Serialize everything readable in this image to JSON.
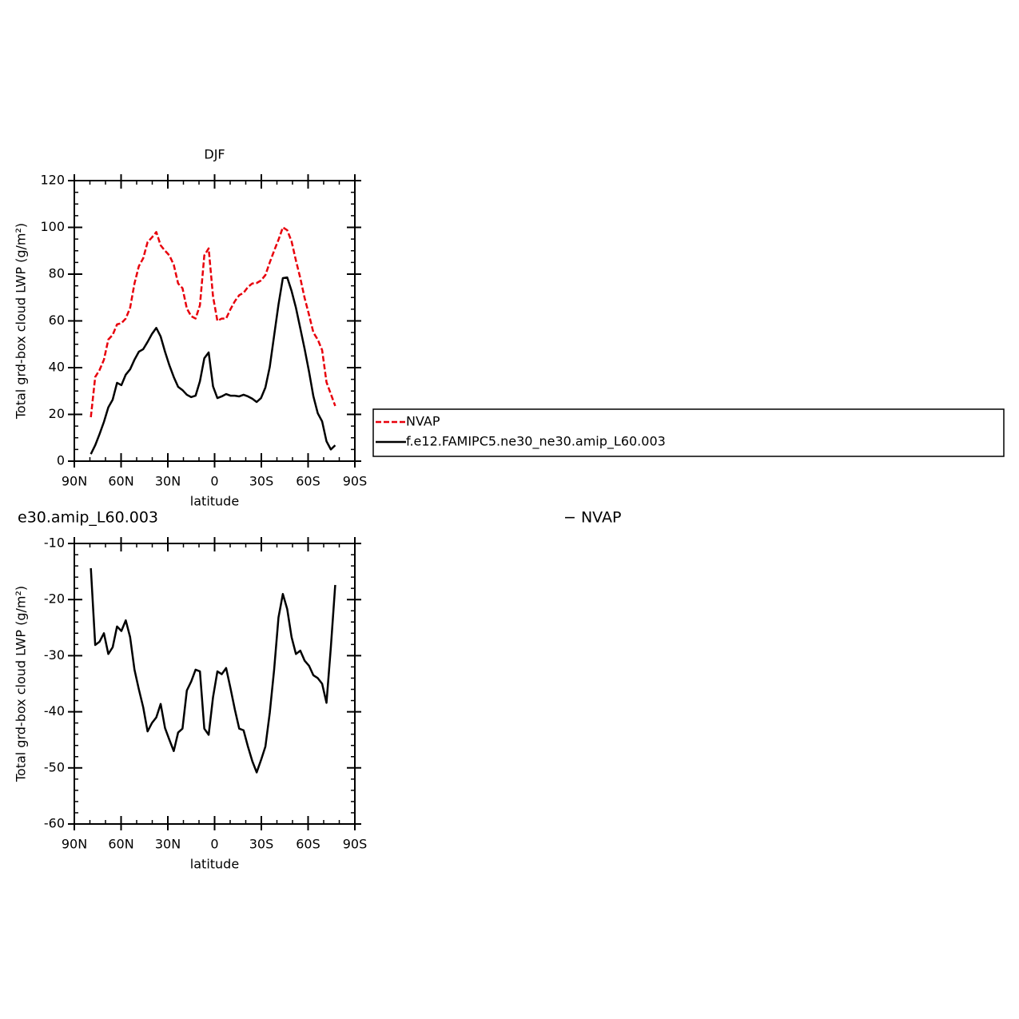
{
  "chart_data": [
    {
      "type": "line",
      "title": "DJF",
      "xlabel": "latitude",
      "ylabel": "Total grd-box cloud LWP (g/m²)",
      "x": [
        79.4,
        76.6,
        73.8,
        71.0,
        68.2,
        65.4,
        62.6,
        59.8,
        57.0,
        54.2,
        51.4,
        48.6,
        45.8,
        43.0,
        40.2,
        37.4,
        34.6,
        31.8,
        29.0,
        26.2,
        23.4,
        20.6,
        17.8,
        15.0,
        12.2,
        9.4,
        6.6,
        3.8,
        1.0,
        -1.8,
        -4.6,
        -7.4,
        -10.2,
        -13.0,
        -15.8,
        -18.6,
        -21.4,
        -24.2,
        -27.0,
        -29.8,
        -32.6,
        -35.4,
        -38.2,
        -41.0,
        -43.8,
        -46.6,
        -49.4,
        -52.2,
        -55.0,
        -57.8,
        -60.6,
        -63.4,
        -66.2,
        -69.0,
        -71.8,
        -74.6,
        -77.4
      ],
      "series": [
        {
          "name": "NVAP",
          "color": "#e8000b",
          "dashed": true,
          "values": [
            18.8,
            36,
            39,
            43.4,
            52,
            54,
            58.5,
            59,
            61,
            65.6,
            76,
            83.4,
            86.8,
            93.7,
            95.7,
            98,
            92.3,
            90,
            88,
            84,
            76,
            74,
            65.3,
            62,
            61,
            66.7,
            88,
            91,
            70.4,
            60,
            61,
            61,
            65,
            68.4,
            71,
            72,
            74.5,
            76,
            76.2,
            77.3,
            79.6,
            85,
            90,
            94.7,
            100,
            98.8,
            94,
            85.8,
            78.3,
            69.7,
            62.6,
            55,
            52,
            47.5,
            33.8,
            28.7,
            23.6
          ]
        },
        {
          "name": "f.e12.FAMIPC5.ne30_ne30.amip_L60.003",
          "color": "#000000",
          "dashed": false,
          "values": [
            3,
            6.8,
            11.6,
            16.8,
            23,
            26.3,
            33.5,
            32.5,
            37,
            39.3,
            43.4,
            46.8,
            47.9,
            51,
            54.4,
            57,
            53.3,
            46.8,
            41,
            36,
            31.8,
            30.4,
            28.4,
            27.4,
            28,
            34.2,
            44,
            46.5,
            32,
            27,
            27.7,
            28.7,
            28,
            28,
            27.7,
            28.4,
            27.7,
            26.7,
            25.3,
            27,
            31.5,
            40.3,
            53.7,
            67,
            78.3,
            78.6,
            72.8,
            65.6,
            56.8,
            47.9,
            38.3,
            27.7,
            20.5,
            17,
            8.5,
            5,
            6.8
          ]
        }
      ],
      "xlim": [
        90,
        -90
      ],
      "xticks": [
        {
          "value": 90,
          "label": "90N"
        },
        {
          "value": 60,
          "label": "60N"
        },
        {
          "value": 30,
          "label": "30N"
        },
        0,
        {
          "value": -30,
          "label": "30S"
        },
        {
          "value": -60,
          "label": "60S"
        },
        {
          "value": -90,
          "label": "90S"
        }
      ],
      "xminor": [
        80,
        70,
        50,
        40,
        20,
        10,
        -10,
        -20,
        -40,
        -50,
        -70,
        -80
      ],
      "ylim": [
        0,
        120
      ],
      "yticks": [
        0,
        20,
        40,
        60,
        80,
        100,
        120
      ],
      "yminor": [
        5,
        10,
        15,
        25,
        30,
        35,
        45,
        50,
        55,
        65,
        70,
        75,
        85,
        90,
        95,
        105,
        110,
        115
      ],
      "legend": "right"
    },
    {
      "type": "line",
      "title_parts": [
        "e30.amip_L60.003",
        "− NVAP"
      ],
      "xlabel": "latitude",
      "ylabel": "Total grd-box cloud LWP (g/m²)",
      "x": [
        79.4,
        76.6,
        73.8,
        71.0,
        68.2,
        65.4,
        62.6,
        59.8,
        57.0,
        54.2,
        51.4,
        48.6,
        45.8,
        43.0,
        40.2,
        37.4,
        34.6,
        31.8,
        29.0,
        26.2,
        23.4,
        20.6,
        17.8,
        15.0,
        12.2,
        9.4,
        6.6,
        3.8,
        1.0,
        -1.8,
        -4.6,
        -7.4,
        -10.2,
        -13.0,
        -15.8,
        -18.6,
        -21.4,
        -24.2,
        -27.0,
        -29.8,
        -32.6,
        -35.4,
        -38.2,
        -41.0,
        -43.8,
        -46.6,
        -49.4,
        -52.2,
        -55.0,
        -57.8,
        -60.6,
        -63.4,
        -66.2,
        -69.0,
        -71.8,
        -74.6,
        -77.4
      ],
      "series": [
        {
          "color": "#000000",
          "dashed": false,
          "values": [
            -14.4,
            -28.1,
            -27.5,
            -26,
            -29.7,
            -28.5,
            -24.8,
            -25.6,
            -23.7,
            -26.7,
            -32.5,
            -36,
            -39.2,
            -43.5,
            -42,
            -41,
            -38.6,
            -42.9,
            -45,
            -47,
            -43.7,
            -43,
            -36.2,
            -34.6,
            -32.5,
            -32.8,
            -43,
            -44.1,
            -37.4,
            -32.8,
            -33.3,
            -32.2,
            -35.8,
            -39.6,
            -43,
            -43.3,
            -46.2,
            -48.8,
            -50.8,
            -48.6,
            -46.2,
            -40.2,
            -32.5,
            -23.2,
            -19,
            -21.7,
            -26.7,
            -29.7,
            -29.1,
            -30.9,
            -31.8,
            -33.5,
            -34,
            -35,
            -38.4,
            -28.5,
            -17.4
          ]
        }
      ],
      "xlim": [
        90,
        -90
      ],
      "xticks": [
        {
          "value": 90,
          "label": "90N"
        },
        {
          "value": 60,
          "label": "60N"
        },
        {
          "value": 30,
          "label": "30N"
        },
        0,
        {
          "value": -30,
          "label": "30S"
        },
        {
          "value": -60,
          "label": "60S"
        },
        {
          "value": -90,
          "label": "90S"
        }
      ],
      "xminor": [
        80,
        70,
        50,
        40,
        20,
        10,
        -10,
        -20,
        -40,
        -50,
        -70,
        -80
      ],
      "ylim": [
        -60,
        -10
      ],
      "yticks": [
        -60,
        -50,
        -40,
        -30,
        -20,
        -10
      ],
      "yminor": [
        -58,
        -56,
        -54,
        -52,
        -48,
        -46,
        -44,
        -42,
        -38,
        -36,
        -34,
        -32,
        -28,
        -26,
        -24,
        -22,
        -18,
        -16,
        -14,
        -12
      ]
    }
  ]
}
